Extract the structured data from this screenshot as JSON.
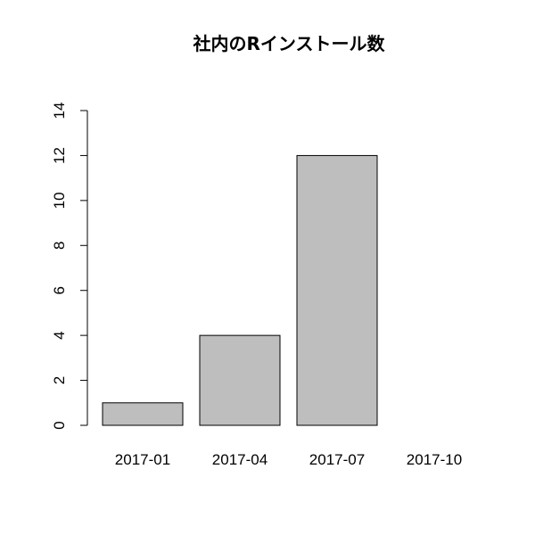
{
  "chart_data": {
    "type": "bar",
    "title": "社内のRインストール数",
    "categories": [
      "2017-01",
      "2017-04",
      "2017-07",
      "2017-10"
    ],
    "values": [
      1,
      4,
      12,
      0
    ],
    "xlabel": "",
    "ylabel": "",
    "ylim": [
      0,
      14
    ],
    "yticks": [
      0,
      2,
      4,
      6,
      8,
      10,
      12,
      14
    ],
    "bar_color": "#bebebe",
    "grid": false,
    "legend": "none"
  }
}
